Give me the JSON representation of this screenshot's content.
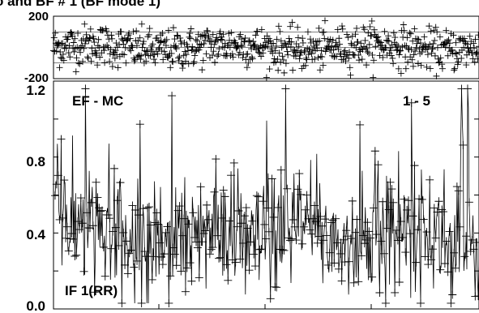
{
  "figure": {
    "title": "o and BF # 1 (BF mode 1)"
  },
  "chart_data": [
    {
      "type": "scatter",
      "panel": "top",
      "ylim": [
        -200,
        200
      ],
      "ytick_labels": [
        "200",
        "-200"
      ],
      "grid": true,
      "marker": "plus",
      "color": "#000000",
      "n_points": 700,
      "band": [
        -100,
        100
      ],
      "mean": 0
    },
    {
      "type": "line",
      "panel": "bottom",
      "ylim": [
        0.0,
        1.2
      ],
      "ytick_labels": [
        "1.2",
        "0.8",
        "0.4",
        "0.0"
      ],
      "grid": false,
      "marker": "plus",
      "color": "#000000",
      "annotations": {
        "left": "EF - MC",
        "right": "1 - 5",
        "bottom": "IF 1(RR)"
      },
      "n_points": 560,
      "typical_range": [
        0.1,
        0.9
      ],
      "mean": 0.4
    }
  ]
}
